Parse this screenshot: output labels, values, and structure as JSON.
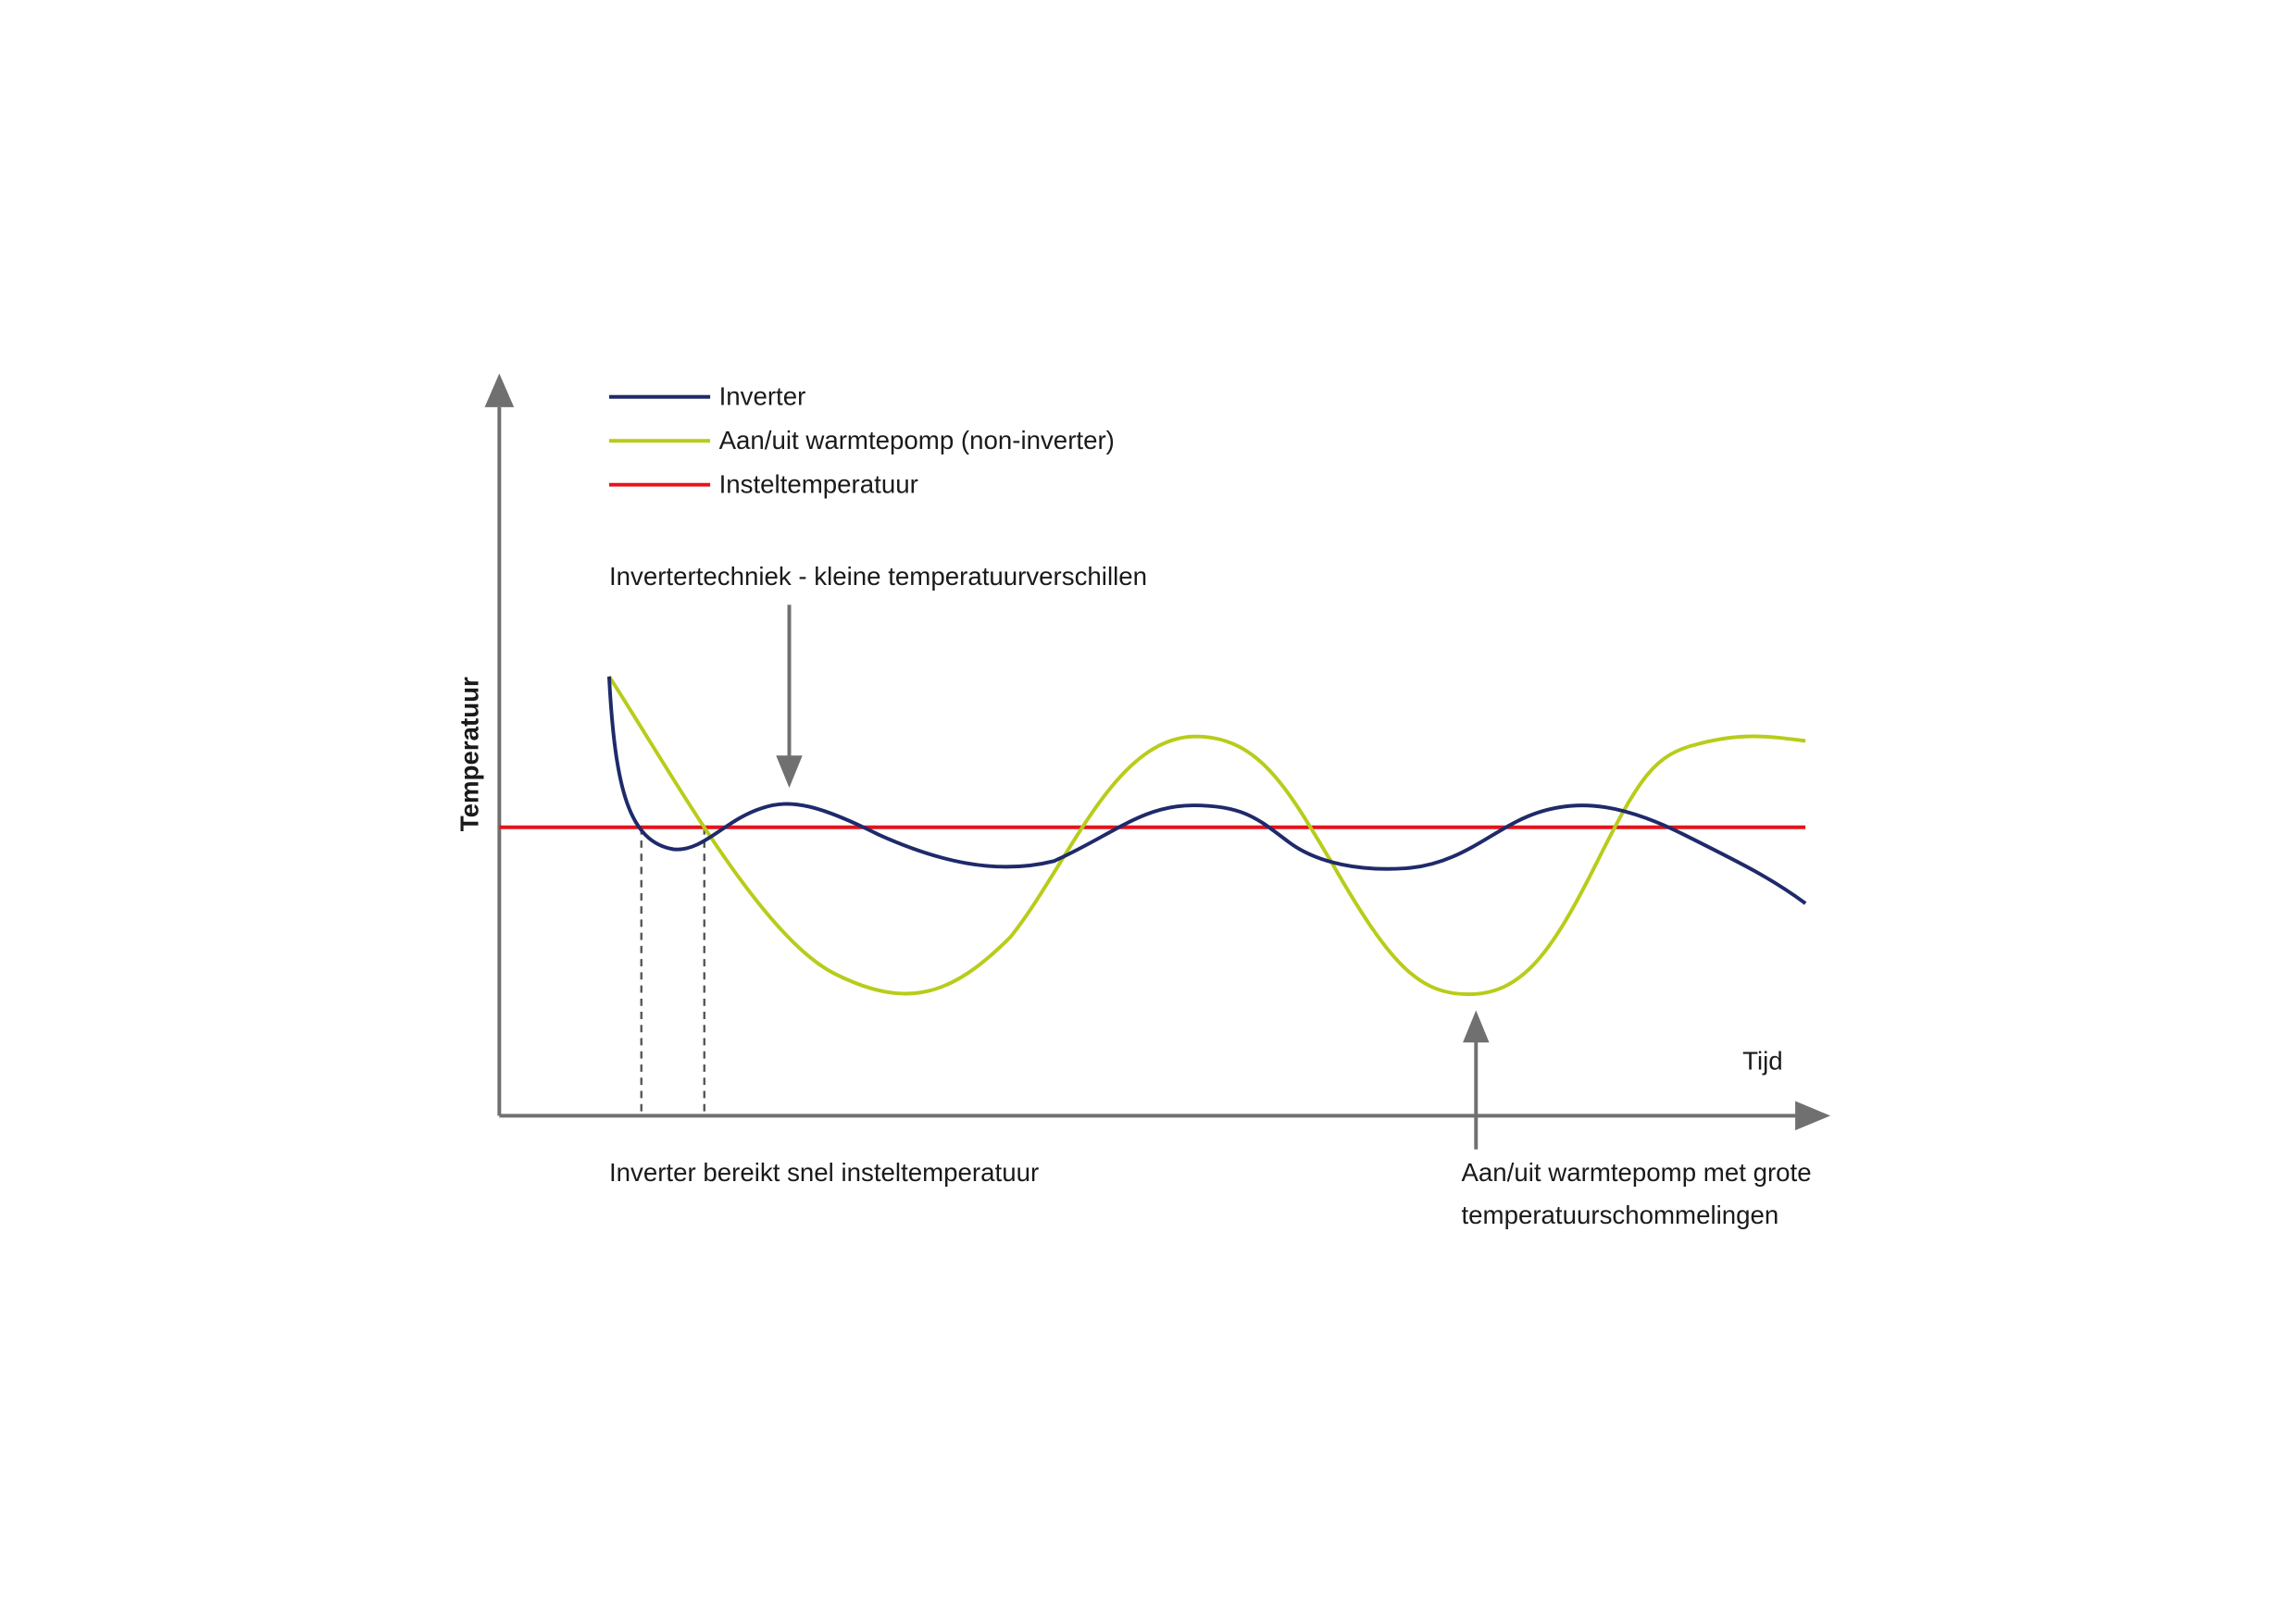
{
  "legend": {
    "items": [
      "Inverter",
      "Aan/uit warmtepomp (non-inverter)",
      "Insteltemperatuur"
    ]
  },
  "axes": {
    "y_label": "Temperatuur",
    "x_label": "Tijd"
  },
  "annotations": {
    "top": "Invertertechniek - kleine temperatuurverschillen",
    "bottom_left": "Inverter bereikt snel insteltemperatuur",
    "bottom_right": [
      "Aan/uit warmtepomp met grote",
      "temperatuurschommelingen"
    ]
  }
}
